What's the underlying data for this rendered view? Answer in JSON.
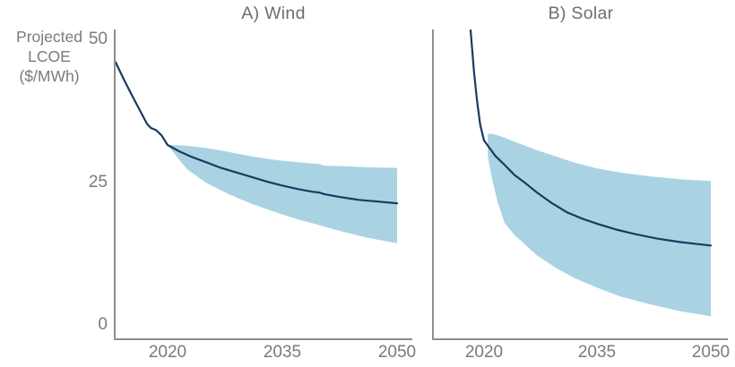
{
  "style": {
    "text_color": "#7a7a7a",
    "axis_color": "#8e8e8e",
    "background": "#ffffff"
  },
  "figure": {
    "ylabel_multiline": "Projected\nLCOE\n($/MWh)"
  },
  "chart_data": [
    {
      "type": "line",
      "title": "A) Wind",
      "ylabel": "Projected LCOE ($/MWh)",
      "xlabel": "",
      "x_axis": {
        "ticks": [
          2020,
          2035,
          2050
        ],
        "range": [
          2013,
          2051
        ],
        "grid": false
      },
      "y_axis": {
        "ticks": [
          0,
          25,
          50
        ],
        "range": [
          0,
          52
        ],
        "grid": false
      },
      "legend": "none",
      "colors": {
        "line": "#1b3a5f",
        "band": "#a9d3e3"
      },
      "series": [
        {
          "name": "median-projection",
          "x": [
            2013.2,
            2014.2,
            2015.3,
            2016.4,
            2017.3,
            2017.8,
            2018.5,
            2019.2,
            2020,
            2021.5,
            2023,
            2025,
            2027,
            2029,
            2031,
            2033,
            2035,
            2037,
            2039,
            2039.8,
            2040.5,
            2042.5,
            2045,
            2047.5,
            2050
          ],
          "y": [
            46,
            43.2,
            40.3,
            37.5,
            35.2,
            34.5,
            34.1,
            33.2,
            31.5,
            30.4,
            29.5,
            28.5,
            27.5,
            26.7,
            25.9,
            25.1,
            24.4,
            23.8,
            23.3,
            23.2,
            22.9,
            22.4,
            21.9,
            21.6,
            21.3
          ]
        }
      ],
      "band": {
        "name": "uncertainty-range",
        "x": [
          2020,
          2021,
          2022.5,
          2025,
          2028,
          2031,
          2034,
          2037,
          2039.8,
          2040.5,
          2043,
          2046,
          2050
        ],
        "upper": [
          31.5,
          31.5,
          31.4,
          31.0,
          30.3,
          29.5,
          28.9,
          28.5,
          28.2,
          27.9,
          27.8,
          27.6,
          27.5
        ],
        "lower": [
          31.5,
          29.8,
          27.3,
          24.9,
          22.9,
          21.2,
          19.8,
          18.5,
          17.5,
          17.2,
          16.3,
          15.3,
          14.3
        ]
      }
    },
    {
      "type": "line",
      "title": "B) Solar",
      "ylabel": "Projected LCOE ($/MWh)",
      "xlabel": "",
      "x_axis": {
        "ticks": [
          2020,
          2035,
          2050
        ],
        "range": [
          2013,
          2051
        ],
        "grid": false
      },
      "y_axis": {
        "ticks": [
          0,
          25,
          50
        ],
        "range": [
          0,
          52
        ],
        "grid": false
      },
      "legend": "none",
      "colors": {
        "line": "#1b3a5f",
        "band": "#a9d3e3"
      },
      "series": [
        {
          "name": "median-projection",
          "x": [
            2018.2,
            2018.7,
            2019.1,
            2019.5,
            2020,
            2020.6,
            2021.5,
            2022.5,
            2024,
            2025.5,
            2027,
            2029,
            2031,
            2033,
            2035,
            2037.5,
            2040,
            2043,
            2046,
            2050
          ],
          "y": [
            52,
            44,
            39,
            35,
            32.3,
            31.2,
            29.6,
            28.3,
            26.3,
            24.8,
            23.2,
            21.3,
            19.7,
            18.6,
            17.7,
            16.7,
            15.9,
            15.1,
            14.5,
            13.9
          ]
        }
      ],
      "band": {
        "name": "uncertainty-range",
        "x": [
          2020.5,
          2021,
          2021.8,
          2022.7,
          2024,
          2025,
          2027,
          2029.5,
          2032,
          2035,
          2038,
          2042,
          2046,
          2050
        ],
        "upper": [
          33.4,
          33.5,
          33.2,
          32.8,
          32.1,
          31.6,
          30.6,
          29.5,
          28.4,
          27.4,
          26.7,
          26.0,
          25.5,
          25.2
        ],
        "lower": [
          29.5,
          26.0,
          21.5,
          17.9,
          15.8,
          14.6,
          12.2,
          10.0,
          8.2,
          6.5,
          5.0,
          3.6,
          2.4,
          1.5
        ]
      }
    }
  ]
}
